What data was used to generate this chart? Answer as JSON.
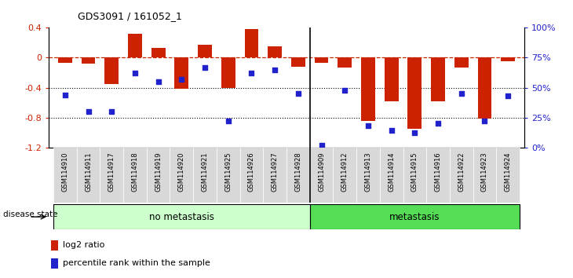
{
  "title": "GDS3091 / 161052_1",
  "samples": [
    "GSM114910",
    "GSM114911",
    "GSM114917",
    "GSM114918",
    "GSM114919",
    "GSM114920",
    "GSM114921",
    "GSM114925",
    "GSM114926",
    "GSM114927",
    "GSM114928",
    "GSM114909",
    "GSM114912",
    "GSM114913",
    "GSM114914",
    "GSM114915",
    "GSM114916",
    "GSM114922",
    "GSM114923",
    "GSM114924"
  ],
  "log2_ratio": [
    -0.07,
    -0.08,
    -0.35,
    0.32,
    0.13,
    -0.42,
    0.17,
    -0.41,
    0.38,
    0.15,
    -0.12,
    -0.07,
    -0.13,
    -0.85,
    -0.58,
    -0.95,
    -0.58,
    -0.13,
    -0.82,
    -0.05
  ],
  "percentile": [
    44,
    30,
    30,
    62,
    55,
    57,
    67,
    22,
    62,
    65,
    45,
    2,
    48,
    18,
    14,
    12,
    20,
    45,
    22,
    43
  ],
  "no_metastasis_count": 11,
  "metastasis_count": 9,
  "ylim_left": [
    -1.2,
    0.4
  ],
  "ylim_right": [
    0,
    100
  ],
  "right_ticks": [
    0,
    25,
    50,
    75,
    100
  ],
  "right_tick_labels": [
    "0%",
    "25%",
    "50%",
    "75%",
    "100%"
  ],
  "left_ticks": [
    -1.2,
    -0.8,
    -0.4,
    0.0,
    0.4
  ],
  "left_tick_labels": [
    "-1.2",
    "-0.8",
    "-0.4",
    "0",
    "0.4"
  ],
  "dotted_lines": [
    -0.4,
    -0.8
  ],
  "bar_color": "#CC2200",
  "scatter_color": "#2222CC",
  "no_meta_color": "#CCFFCC",
  "meta_color": "#55DD55",
  "label_log2": "log2 ratio",
  "label_pct": "percentile rank within the sample",
  "disease_state_label": "disease state",
  "no_meta_label": "no metastasis",
  "meta_label": "metastasis"
}
